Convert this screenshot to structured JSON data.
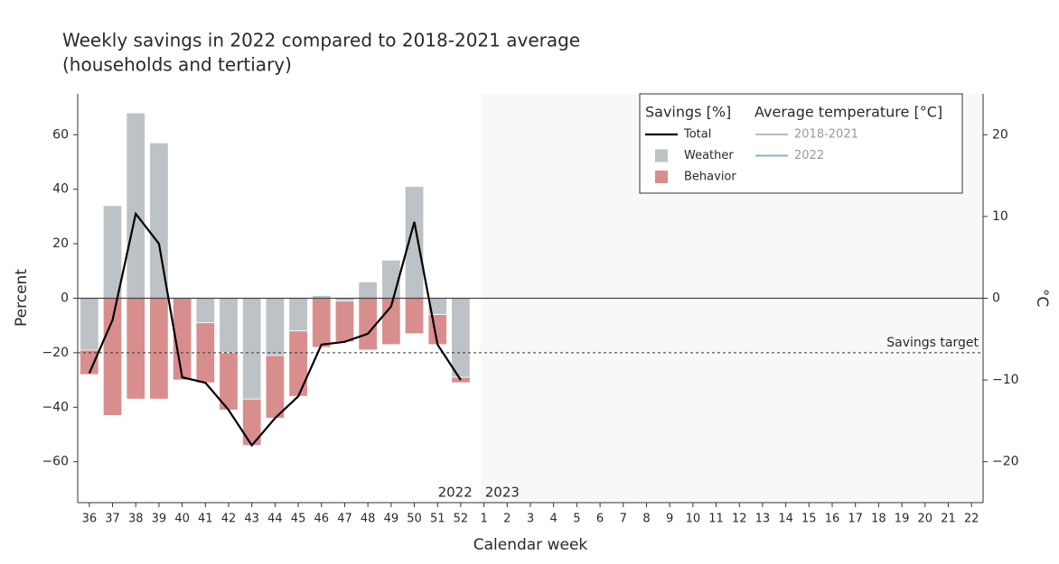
{
  "chart_data": {
    "type": "bar",
    "title": "Weekly savings in 2022 compared to 2018-2021 average",
    "subtitle": "(households and tertiary)",
    "x_label": "Calendar week",
    "y_label": "Percent",
    "y2_label": "°C",
    "categories": [
      "36",
      "37",
      "38",
      "39",
      "40",
      "41",
      "42",
      "43",
      "44",
      "45",
      "46",
      "47",
      "48",
      "49",
      "50",
      "51",
      "52",
      "1",
      "2",
      "3",
      "4",
      "5",
      "6",
      "7",
      "8",
      "9",
      "10",
      "11",
      "12",
      "13",
      "14",
      "15",
      "16",
      "17",
      "18",
      "19",
      "20",
      "21",
      "22"
    ],
    "ylim": [
      -75,
      75
    ],
    "yticks": [
      {
        "value": -60,
        "label": "−60"
      },
      {
        "value": -40,
        "label": "−40"
      },
      {
        "value": -20,
        "label": "−20"
      },
      0,
      20,
      40,
      60
    ],
    "y2lim": [
      -25,
      25
    ],
    "y2ticks": [
      {
        "value": -20,
        "label": "−20"
      },
      {
        "value": -10,
        "label": "−10"
      },
      0,
      10,
      20
    ],
    "series": [
      {
        "name": "Total",
        "type": "line",
        "color": "#000000",
        "values": [
          -27.5,
          -8,
          31,
          20,
          -29,
          -31,
          -41,
          -54,
          -44,
          -36,
          -17,
          -16,
          -13,
          -3,
          28,
          -17,
          -30,
          null,
          null,
          null,
          null,
          null,
          null,
          null,
          null,
          null,
          null,
          null,
          null,
          null,
          null,
          null,
          null,
          null,
          null,
          null,
          null,
          null,
          null
        ]
      },
      {
        "name": "Weather",
        "type": "bar",
        "color": "#bdc2c6",
        "values": [
          -19,
          34,
          68,
          57,
          0,
          -9,
          -20,
          -37,
          -21,
          -12,
          1,
          -1,
          6,
          14,
          41,
          -6,
          -29,
          null,
          null,
          null,
          null,
          null,
          null,
          null,
          null,
          null,
          null,
          null,
          null,
          null,
          null,
          null,
          null,
          null,
          null,
          null,
          null,
          null,
          null
        ]
      },
      {
        "name": "Behavior",
        "type": "bar",
        "color": "#d98e8e",
        "values": [
          -9,
          -43,
          -37,
          -37,
          -30,
          -22,
          -21,
          -17,
          -23,
          -24,
          -18,
          -15,
          -19,
          -17,
          -13,
          -11,
          -2,
          null,
          null,
          null,
          null,
          null,
          null,
          null,
          null,
          null,
          null,
          null,
          null,
          null,
          null,
          null,
          null,
          null,
          null,
          null,
          null,
          null,
          null
        ]
      }
    ],
    "legend_title": "Savings [%]",
    "temperature_legend_title": "Average temperature [°C]",
    "temperature_series": [
      {
        "name": "2018-2021",
        "color": "#b4bcc4"
      },
      {
        "name": "2022",
        "color": "#86b4bf"
      }
    ],
    "target": {
      "value": -20,
      "label": "Savings target"
    },
    "period_labels": [
      "2022",
      "2023"
    ],
    "legend_position": "top-right"
  }
}
